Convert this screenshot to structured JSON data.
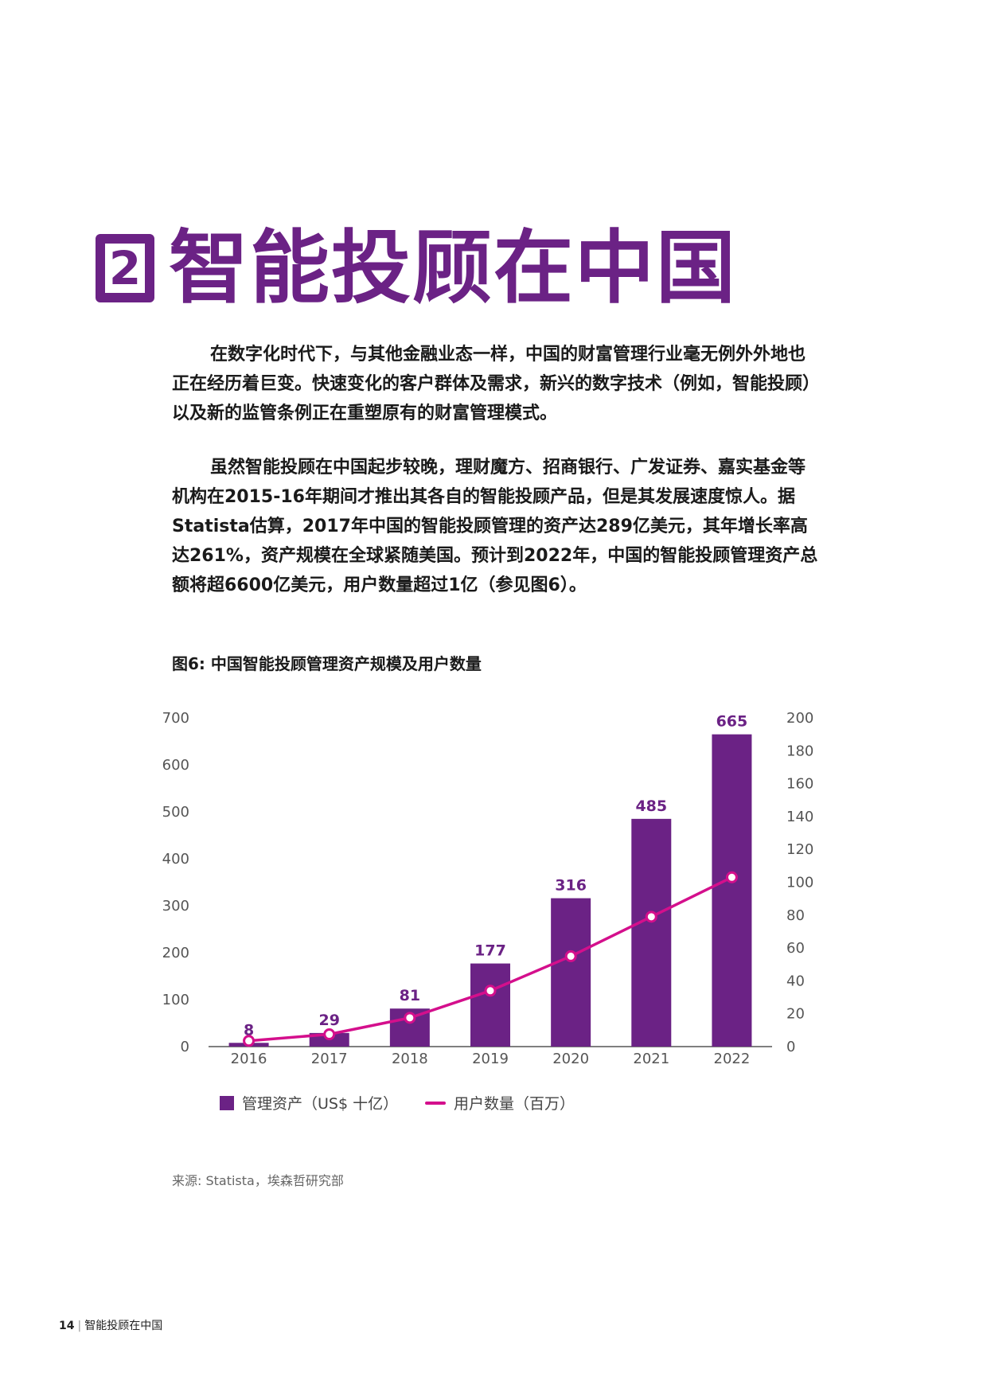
{
  "section": {
    "number": "2",
    "title": "智能投顾在中国"
  },
  "paragraphs": [
    "在数字化时代下，与其他金融业态一样，中国的财富管理行业毫无例外外地也正在经历着巨变。快速变化的客户群体及需求，新兴的数字技术（例如，智能投顾）以及新的监管条例正在重塑原有的财富管理模式。",
    "虽然智能投顾在中国起步较晚，理财魔方、招商银行、广发证券、嘉实基金等机构在2015-16年期间才推出其各自的智能投顾产品，但是其发展速度惊人。据Statista估算，2017年中国的智能投顾管理的资产达289亿美元，其年增长率高达261%，资产规模在全球紧随美国。预计到2022年，中国的智能投顾管理资产总额将超6600亿美元，用户数量超过1亿（参见图6）。"
  ],
  "figure": {
    "caption": "图6: 中国智能投顾管理资产规模及用户数量"
  },
  "chart_data": {
    "type": "bar",
    "categories": [
      "2016",
      "2017",
      "2018",
      "2019",
      "2020",
      "2021",
      "2022"
    ],
    "series": [
      {
        "name": "管理资产（US$ 十亿）",
        "type": "bar",
        "axis": "left",
        "values": [
          8,
          29,
          81,
          177,
          316,
          485,
          665
        ],
        "color": "#6b2285"
      },
      {
        "name": "用户数量（百万）",
        "type": "line",
        "axis": "right",
        "values": [
          3.5,
          7.5,
          17.5,
          34,
          55,
          79,
          103
        ],
        "color": "#d40f8c"
      }
    ],
    "ylim_left": [
      0,
      700
    ],
    "yticks_left": [
      "0",
      "100",
      "200",
      "300",
      "400",
      "500",
      "600",
      "700"
    ],
    "ylim_right": [
      0,
      200
    ],
    "yticks_right": [
      "0",
      "20",
      "40",
      "60",
      "80",
      "100",
      "120",
      "140",
      "160",
      "180",
      "200"
    ],
    "data_labels": [
      "8",
      "29",
      "81",
      "177",
      "316",
      "485",
      "665"
    ],
    "legend_position": "bottom"
  },
  "source": "来源: Statista，埃森哲研究部",
  "footer": {
    "page": "14",
    "title": "智能投顾在中国"
  }
}
